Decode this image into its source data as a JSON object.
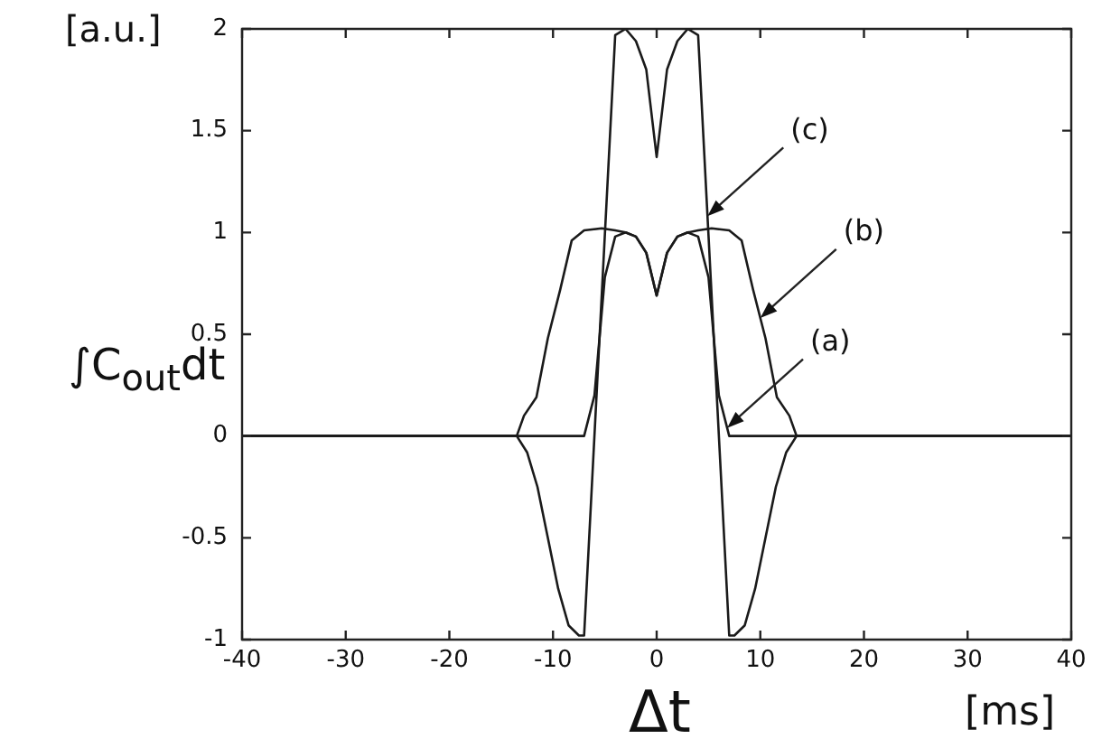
{
  "chart_data": {
    "type": "line",
    "xlabel": "Δt",
    "ylabel": "∫C$_{out}$dt",
    "xlim": [
      -40,
      40
    ],
    "xticks": [
      -40,
      -30,
      -20,
      -10,
      0,
      10,
      20,
      30,
      40
    ],
    "ylim": [
      -1,
      2
    ],
    "yticks": [
      -1,
      -0.5,
      0,
      0.5,
      1,
      1.5,
      2
    ],
    "marker": "none",
    "line_style": "solid",
    "legend": false,
    "annotations": [
      "[a.u.]",
      "[ms]",
      {
        "text": "(c)",
        "x": 4.9,
        "y": 1.08
      },
      {
        "text": "(b)",
        "x": 10,
        "y": 0.58
      },
      {
        "text": "(a)",
        "x": 6.8,
        "y": 0.04
      }
    ],
    "series": [
      {
        "color": "#1a1a1a",
        "x": [
          -40,
          -7,
          -6,
          -5,
          -4,
          -3,
          -2,
          -1,
          0,
          1,
          2,
          3,
          4,
          5,
          6,
          7,
          40
        ],
        "values": [
          0,
          0,
          0.2,
          0.78,
          0.98,
          1.0,
          0.98,
          0.9,
          0.69,
          0.9,
          0.98,
          1.0,
          0.98,
          0.78,
          0.2,
          0,
          0
        ]
      },
      {
        "color": "#1a1a1a",
        "x": [
          -40,
          -13.5,
          -12.8,
          -11.6,
          -10.5,
          -9.3,
          -8.2,
          -7,
          -5.3,
          -4,
          -3,
          -2,
          -1,
          0,
          1,
          2,
          3,
          4,
          5.3,
          7,
          8.2,
          9.3,
          10.5,
          11.6,
          12.8,
          13.5,
          40
        ],
        "values": [
          0,
          0,
          0.1,
          0.19,
          0.48,
          0.72,
          0.96,
          1.01,
          1.02,
          1.01,
          1.0,
          0.98,
          0.9,
          0.69,
          0.9,
          0.98,
          1.0,
          1.01,
          1.02,
          1.01,
          0.96,
          0.72,
          0.48,
          0.19,
          0.1,
          0,
          0
        ]
      },
      {
        "color": "#1a1a1a",
        "x": [
          -40,
          -13.5,
          -12.5,
          -11.5,
          -10.5,
          -9.5,
          -8.5,
          -7.5,
          -7,
          -4,
          -3,
          -2,
          -1,
          0,
          1,
          2,
          3,
          4,
          7,
          7.5,
          8.5,
          9.5,
          10.5,
          11.5,
          12.5,
          13.5,
          40
        ],
        "values": [
          0,
          0,
          -0.08,
          -0.25,
          -0.5,
          -0.75,
          -0.93,
          -0.98,
          -0.98,
          1.97,
          2.0,
          1.94,
          1.8,
          1.37,
          1.8,
          1.94,
          2.0,
          1.97,
          -0.98,
          -0.98,
          -0.93,
          -0.75,
          -0.5,
          -0.25,
          -0.08,
          0,
          0
        ]
      }
    ]
  }
}
